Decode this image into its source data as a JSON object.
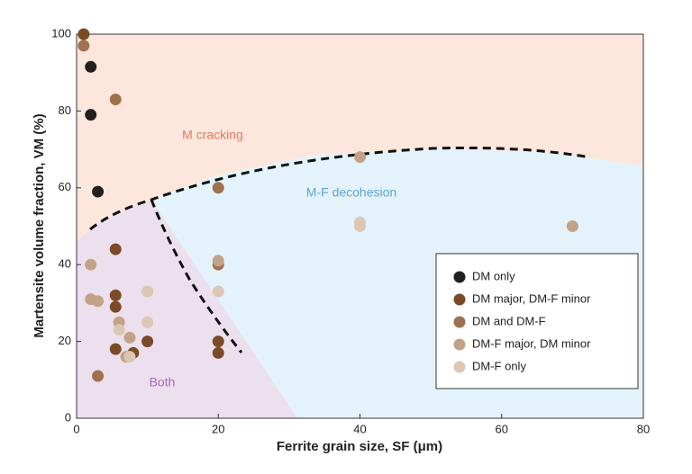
{
  "chart_data": {
    "type": "scatter",
    "xlabel": "Ferrite grain size, SF (μm)",
    "ylabel": "Martensite volume fraction, VM (%)",
    "xlim": [
      0,
      80
    ],
    "ylim": [
      0,
      100
    ],
    "xticks": [
      0,
      20,
      40,
      60,
      80
    ],
    "yticks": [
      0,
      20,
      40,
      60,
      80,
      100
    ],
    "annotations": [
      "M cracking",
      "M-F decohesion",
      "Both"
    ],
    "series": [
      {
        "name": "DM only",
        "color": "#231f20",
        "x": [
          2,
          2,
          3
        ],
        "values": [
          91.5,
          79,
          59
        ]
      },
      {
        "name": "DM major, DM-F minor",
        "color": "#7b4a26",
        "x": [
          1,
          5.5,
          5.5,
          5.5,
          5.5,
          10,
          8,
          20,
          20
        ],
        "values": [
          100,
          44,
          32,
          29,
          18,
          20,
          17,
          20,
          17
        ]
      },
      {
        "name": "DM and DM-F",
        "color": "#a0714f",
        "x": [
          1,
          5.5,
          3,
          20,
          20
        ],
        "values": [
          97,
          83,
          11,
          60,
          40
        ]
      },
      {
        "name": "DM-F major, DM minor",
        "color": "#c4a287",
        "x": [
          2,
          2,
          3,
          6,
          7.5,
          20,
          40,
          70,
          7
        ],
        "values": [
          40,
          31,
          30.5,
          25,
          21,
          41,
          68,
          50,
          16
        ]
      },
      {
        "name": "DM-F only",
        "color": "#dcc6b4",
        "x": [
          6,
          10,
          10,
          20,
          40,
          40,
          7.5
        ],
        "values": [
          23,
          33,
          25,
          33,
          51,
          50,
          16
        ]
      }
    ]
  }
}
